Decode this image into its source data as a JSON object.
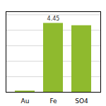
{
  "chart_data": {
    "type": "bar",
    "categories": [
      "Au",
      "Fe",
      "SO4"
    ],
    "values": [
      0.08,
      4.45,
      4.3
    ],
    "value_labels": [
      null,
      "4.45",
      null
    ],
    "color": "#8fba2e",
    "ylim": [
      0,
      5.2
    ],
    "yticks": [
      1,
      2,
      3,
      4,
      5
    ],
    "grid": true,
    "tick_labels": "x"
  }
}
